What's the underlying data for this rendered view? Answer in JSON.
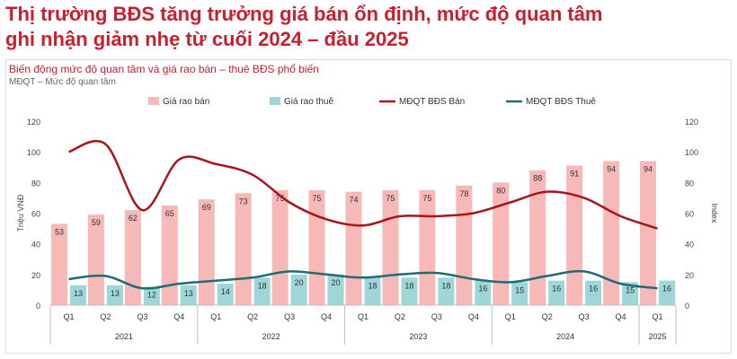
{
  "headline": {
    "line1": "Thị trường BĐS tăng trưởng giá bán ổn định, mức độ quan tâm",
    "line2": "ghi nhận giảm nhẹ từ cuối 2024 – đầu 2025"
  },
  "chart_data": {
    "type": "bar",
    "title": "Biến động mức độ quan tâm và giá rao bán – thuê BĐS phổ biến",
    "subtitle": "MĐQT – Mức độ quan tâm",
    "ylabel": "Triệu VNĐ",
    "y2label": "Index",
    "ylim": [
      0,
      120
    ],
    "y2lim": [
      0,
      120
    ],
    "yticks": [
      0,
      20,
      40,
      60,
      80,
      100,
      120
    ],
    "categories": [
      "Q1",
      "Q2",
      "Q3",
      "Q4",
      "Q1",
      "Q2",
      "Q3",
      "Q4",
      "Q1",
      "Q2",
      "Q3",
      "Q4",
      "Q1",
      "Q2",
      "Q3",
      "Q4",
      "Q1"
    ],
    "year_groups": [
      {
        "label": "2021",
        "start": 0,
        "end": 3
      },
      {
        "label": "2022",
        "start": 4,
        "end": 7
      },
      {
        "label": "2023",
        "start": 8,
        "end": 11
      },
      {
        "label": "2024",
        "start": 12,
        "end": 15
      },
      {
        "label": "2025",
        "start": 16,
        "end": 16
      }
    ],
    "legend_position": "top",
    "grid": false,
    "series": [
      {
        "name": "Giá rao bán",
        "type": "bar",
        "color": "#f7b8b8",
        "values": [
          53,
          59,
          62,
          65,
          69,
          73,
          75,
          75,
          74,
          75,
          75,
          78,
          80,
          88,
          91,
          94,
          94
        ]
      },
      {
        "name": "Giá rao thuê",
        "type": "bar",
        "color": "#9fd6d8",
        "values": [
          13,
          13,
          12,
          13,
          14,
          18,
          20,
          20,
          18,
          18,
          18,
          16,
          15,
          16,
          16,
          15,
          16
        ]
      },
      {
        "name": "MĐQT BĐS Bán",
        "type": "line",
        "axis": "right",
        "color": "#a8151b",
        "values": [
          100,
          105,
          62,
          95,
          92,
          85,
          67,
          56,
          52,
          58,
          58,
          60,
          67,
          74,
          70,
          58,
          50
        ]
      },
      {
        "name": "MĐQT BĐS Thuê",
        "type": "line",
        "axis": "right",
        "color": "#1f6d72",
        "values": [
          17,
          19,
          11,
          14,
          16,
          18,
          22,
          20,
          18,
          20,
          21,
          17,
          15,
          19,
          22,
          14,
          11
        ]
      }
    ]
  }
}
